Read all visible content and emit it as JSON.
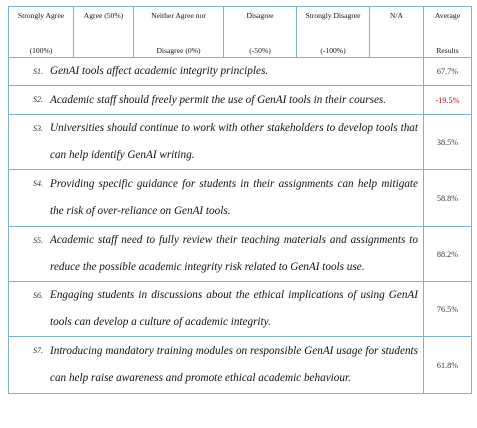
{
  "header": {
    "col1_line1": "Strongly Agree",
    "col1_line2": "(100%)",
    "col2_line1": "Agree (50%)",
    "col2_line2": "",
    "col3_line1": "Neither Agree nor",
    "col3_line2": "Disagree (0%)",
    "col4_line1": "Disagree",
    "col4_line2": "(-50%)",
    "col5_line1": "Strongly Disagree",
    "col5_line2": "(-100%)",
    "col6_line1": "N/A",
    "col6_line2": "",
    "col7_line1": "Average",
    "col7_line2": "Results"
  },
  "rows": [
    {
      "num": "S1.",
      "text": "GenAI tools affect academic integrity principles.",
      "result": "67.7%",
      "negative": false
    },
    {
      "num": "S2.",
      "text": " Academic staff should freely permit the use of GenAI tools in their courses.",
      "result": "-19.5%",
      "negative": true
    },
    {
      "num": "S3.",
      "text": "Universities should continue to work with other stakeholders to develop tools that can help identify GenAI writing.",
      "result": "38.5%",
      "negative": false
    },
    {
      "num": "S4.",
      "text": "Providing specific guidance for students in their assignments can help mitigate the risk of over-reliance on GenAI tools.",
      "result": "58.8%",
      "negative": false
    },
    {
      "num": "S5.",
      "text": "Academic staff need to fully review their teaching materials and assignments to reduce the possible academic integrity risk related to GenAI tools use.",
      "result": "88.2%",
      "negative": false
    },
    {
      "num": "S6.",
      "text": "Engaging students in discussions about the ethical implications of using GenAI tools can develop a culture of academic integrity.",
      "result": "76.5%",
      "negative": false
    },
    {
      "num": "S7.",
      "text": "Introducing mandatory training modules on responsible GenAI usage for students can help raise awareness and promote ethical academic behaviour.",
      "result": "61.8%",
      "negative": false
    }
  ]
}
